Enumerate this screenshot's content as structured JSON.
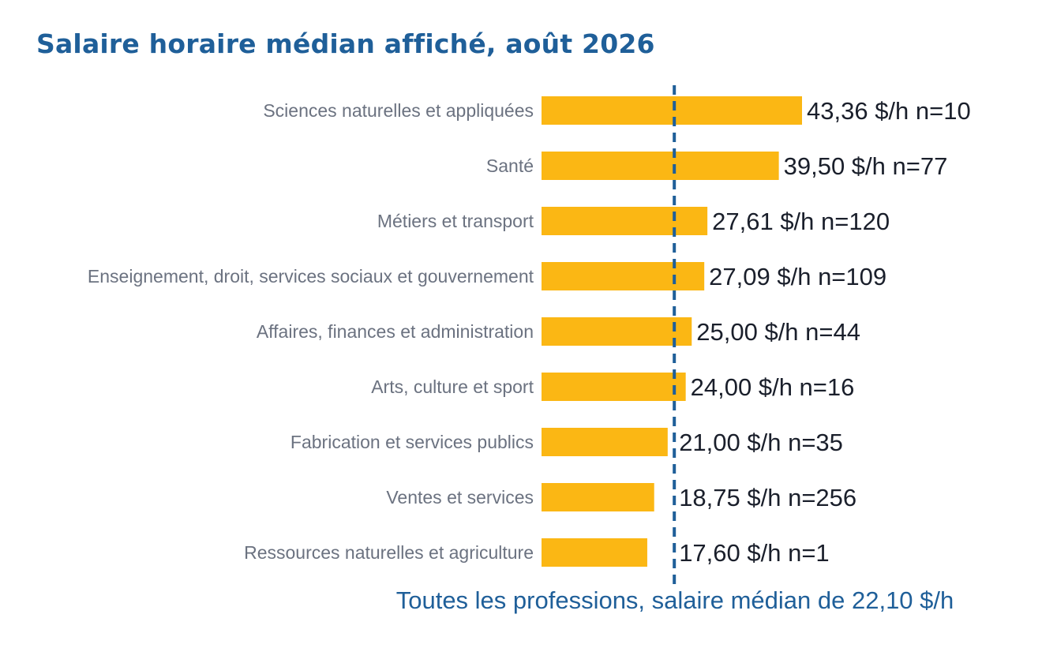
{
  "title": "Salaire horaire médian affiché, août 2026",
  "chart_data": {
    "type": "bar",
    "orientation": "horizontal",
    "categories": [
      "Sciences naturelles et appliquées",
      "Santé",
      "Métiers et transport",
      "Enseignement, droit, services sociaux et gouvernement",
      "Affaires, finances et administration",
      "Arts, culture et sport",
      "Fabrication et services publics",
      "Ventes et services",
      "Ressources naturelles et agriculture"
    ],
    "values": [
      43.36,
      39.5,
      27.61,
      27.09,
      25.0,
      24.0,
      21.0,
      18.75,
      17.6
    ],
    "data_labels": [
      "43,36 $/h  n=10",
      "39,50 $/h  n=77",
      "27,61 $/h  n=120",
      "27,09 $/h  n=109",
      "25,00 $/h  n=44",
      "24,00 $/h  n=16",
      "21,00 $/h  n=35",
      "18,75 $/h  n=256",
      "17,60 $/h  n=1"
    ],
    "reference_line": {
      "value": 22.1,
      "label": "Toutes les professions, salaire médian de 22,10 $/h",
      "style": "dashed"
    },
    "xlim": [
      0,
      43.36
    ],
    "grid": false,
    "bar_color": "#fbb714",
    "reference_color": "#1f5f99"
  }
}
